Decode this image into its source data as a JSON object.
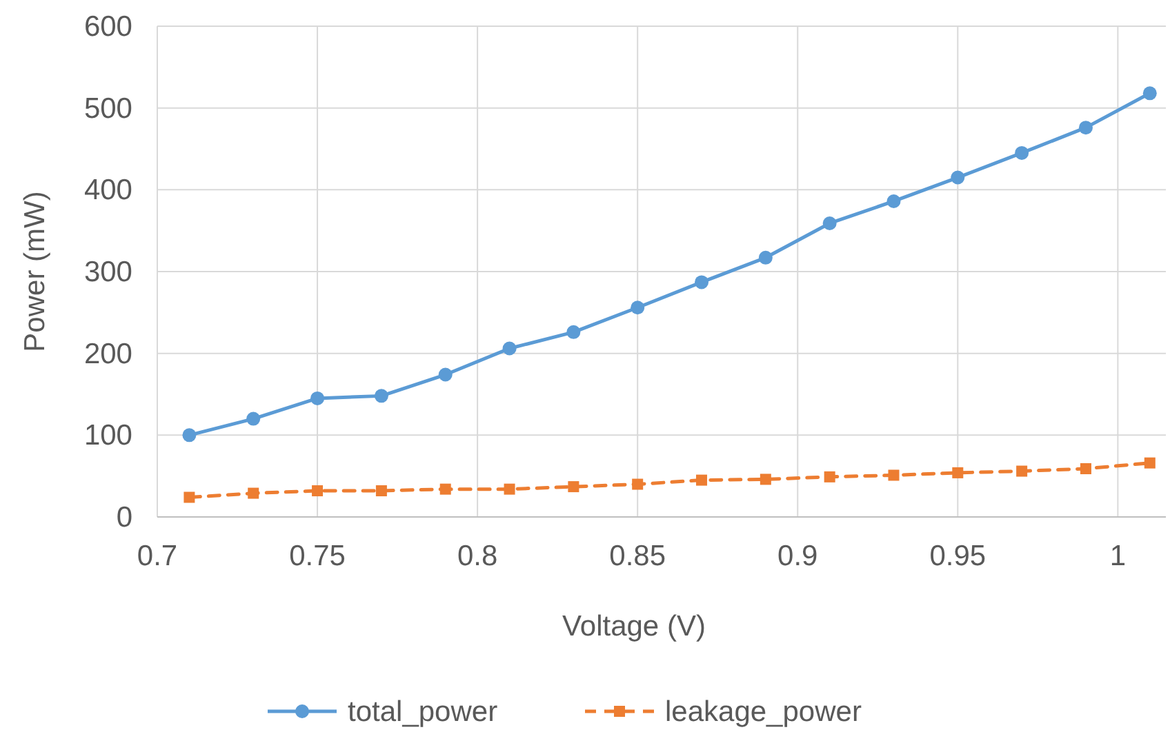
{
  "chart_data": {
    "type": "line",
    "xlabel": "Voltage (V)",
    "ylabel": "Power  (mW)",
    "x": [
      0.71,
      0.73,
      0.75,
      0.77,
      0.79,
      0.81,
      0.83,
      0.85,
      0.87,
      0.89,
      0.91,
      0.93,
      0.95,
      0.97,
      0.99,
      1.01
    ],
    "series": [
      {
        "name": "total_power",
        "color": "#5b9bd5",
        "marker": "circle",
        "line_style": "solid",
        "values": [
          100,
          120,
          145,
          148,
          174,
          206,
          226,
          256,
          287,
          317,
          359,
          386,
          415,
          445,
          476,
          518
        ]
      },
      {
        "name": "leakage_power",
        "color": "#ed7d31",
        "marker": "square",
        "line_style": "dashed",
        "values": [
          24,
          29,
          32,
          32,
          34,
          34,
          37,
          40,
          45,
          46,
          49,
          51,
          54,
          56,
          59,
          66
        ]
      }
    ],
    "xlim": [
      0.7,
      1.015
    ],
    "xticks": [
      0.7,
      0.75,
      0.8,
      0.85,
      0.9,
      0.95,
      1
    ],
    "ylim": [
      0,
      600
    ],
    "yticks": [
      0,
      100,
      200,
      300,
      400,
      500,
      600
    ],
    "grid": true,
    "legend": "bottom"
  }
}
